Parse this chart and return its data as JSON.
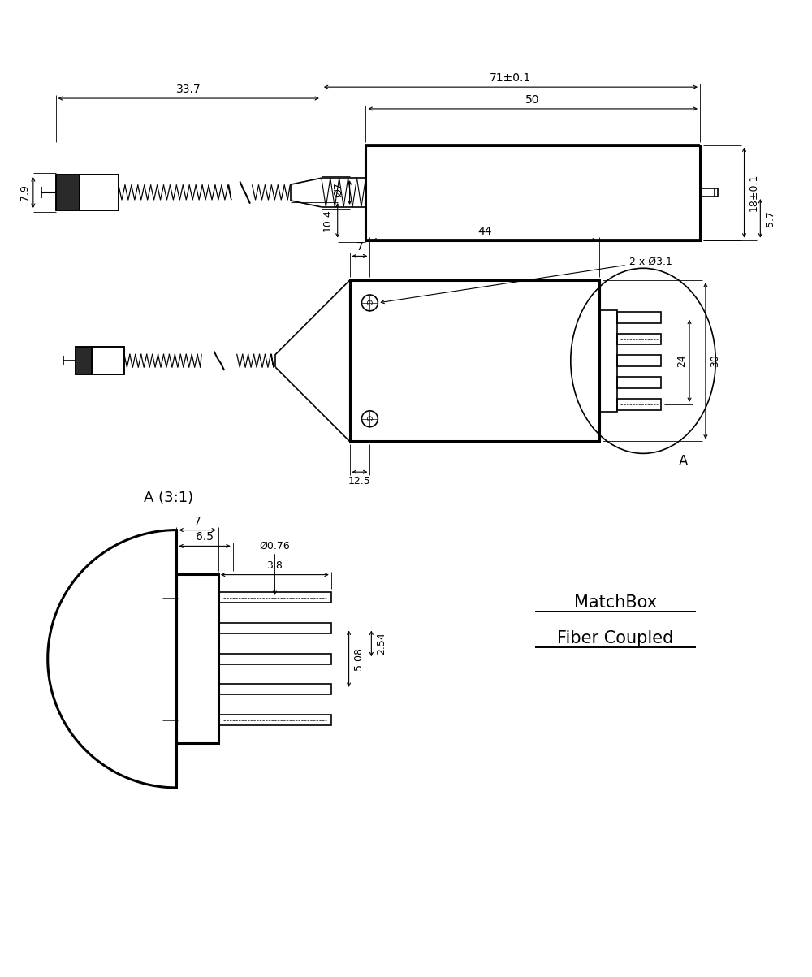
{
  "bg_color": "#ffffff",
  "line_color": "#000000",
  "lw": 1.2,
  "tlw": 2.2,
  "fig_width": 10.0,
  "fig_height": 12.03,
  "annotations": {
    "view3_title": "A (3:1)",
    "matchbox_line1": "MatchBox",
    "matchbox_line2": "Fiber Coupled"
  },
  "dims": {
    "v1_71": "71±0.1",
    "v1_50": "50",
    "v1_33_7": "33.7",
    "v1_d7": "Ø7",
    "v1_7_9": "7.9",
    "v1_10_4": "10.4",
    "v1_18": "18±0.1",
    "v1_5_7": "5.7",
    "v2_44": "44",
    "v2_2xd31": "2 x Ø3.1",
    "v2_7": "7",
    "v2_12_5": "12.5",
    "v2_24": "24",
    "v2_30": "30",
    "v3_7": "7",
    "v3_6_5": "6.5",
    "v3_5_08": "5.08",
    "v3_2_54": "2.54",
    "v3_3_8": "3.8",
    "v3_d076": "Ø0.76"
  }
}
